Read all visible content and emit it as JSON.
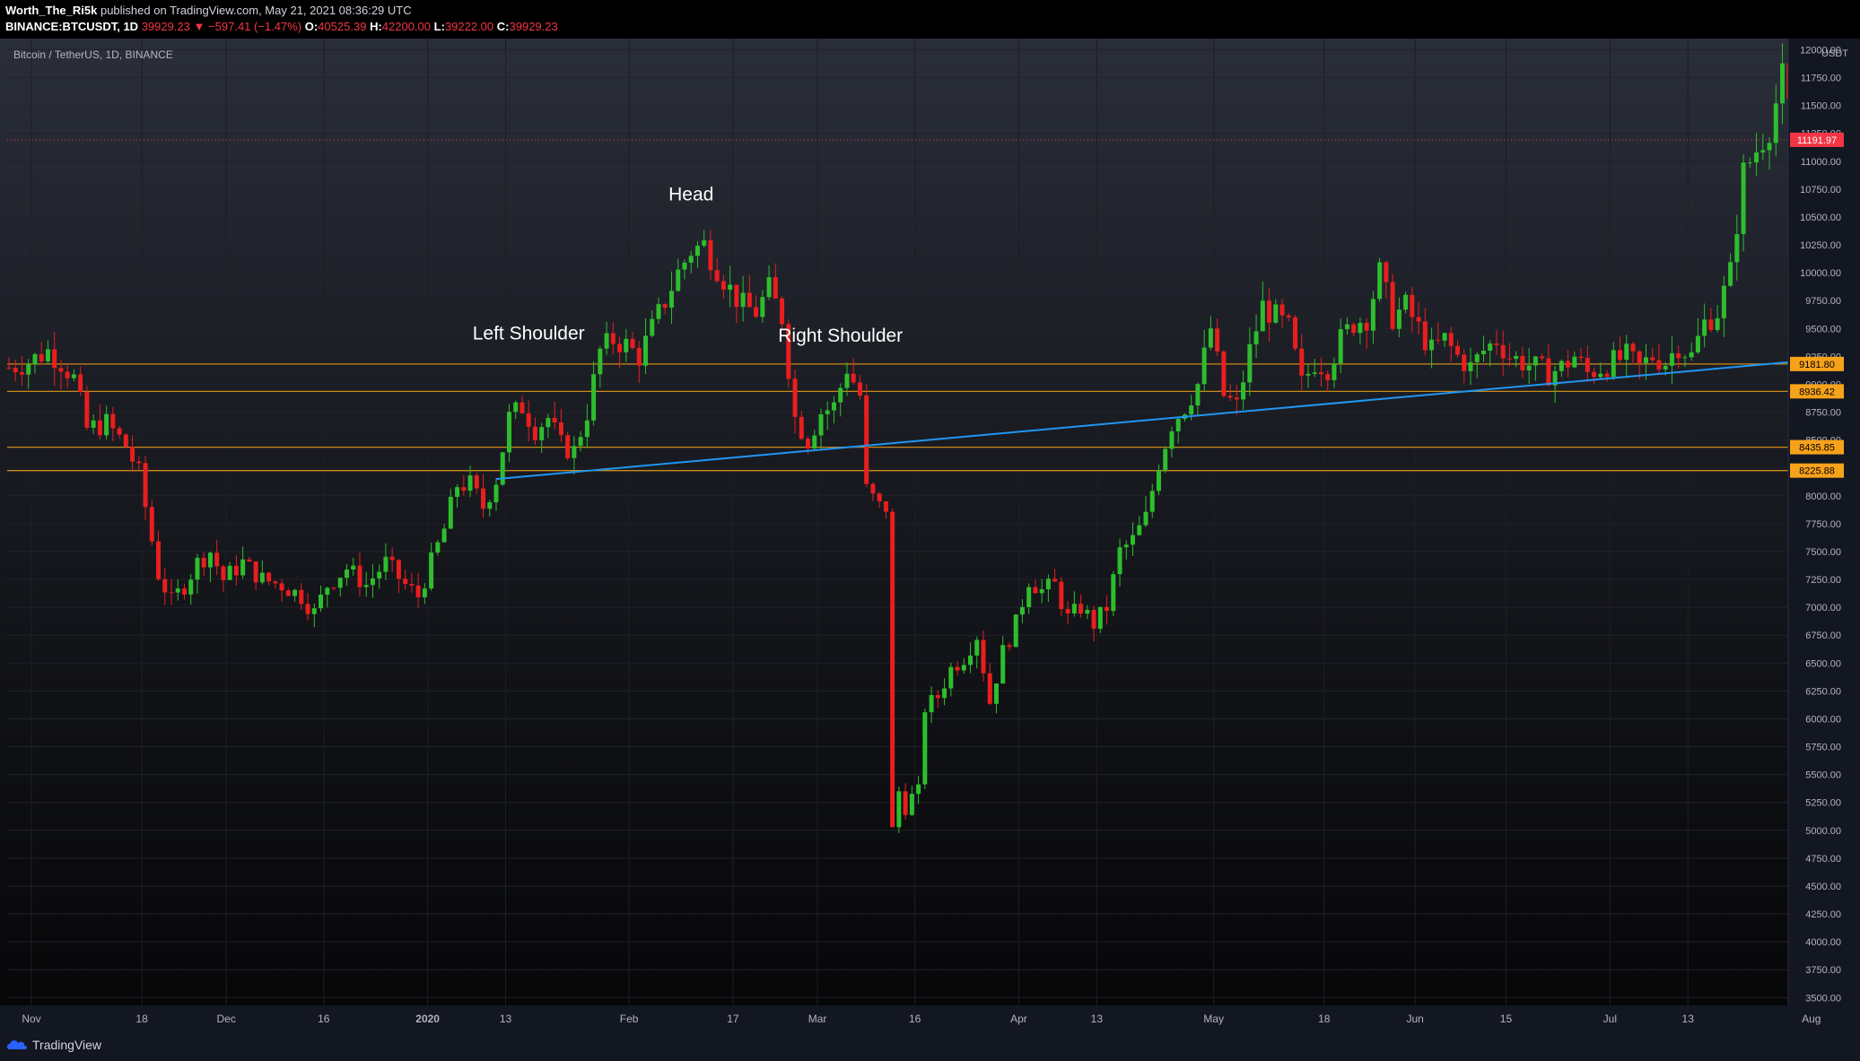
{
  "header": {
    "author": "Worth_The_Ri5k",
    "published_text": "published on TradingView.com, May 21, 2021 08:36:29 UTC",
    "symbol": "BINANCE:BTCUSDT, 1D",
    "last": "39929.23",
    "change": "−597.41 (−1.47%)",
    "open_label": "O:",
    "open": "40525.39",
    "high_label": "H:",
    "high": "42200.00",
    "low_label": "L:",
    "low": "39222.00",
    "close_label": "C:",
    "close": "39929.23"
  },
  "chart_title": "Bitcoin / TetherUS, 1D, BINANCE",
  "footer": {
    "brand": "TradingView"
  },
  "colors": {
    "up": "#26a69a",
    "up_body": "#2ebd2e",
    "down": "#e91e1e",
    "hline": "#c98a1a",
    "trendline": "#2196f3",
    "price_tag": "#f23645",
    "level_tag": "#f7a21b"
  },
  "chart_data": {
    "type": "candlestick",
    "title": "Bitcoin / TetherUS, 1D, BINANCE",
    "y_unit": "USDT",
    "ylim": [
      3400,
      12200
    ],
    "y_ticks": [
      3500,
      3750,
      4000,
      4250,
      4500,
      4750,
      5000,
      5250,
      5500,
      5750,
      6000,
      6250,
      6500,
      6750,
      7000,
      7250,
      7500,
      7750,
      8000,
      8250,
      8500,
      8750,
      9000,
      9250,
      9500,
      9750,
      10000,
      10250,
      10500,
      10750,
      11000,
      11250,
      11500,
      11750,
      12000
    ],
    "x_start_date": "2019-11-01",
    "x_ticks": [
      {
        "label": "Nov",
        "day": 0
      },
      {
        "label": "18",
        "day": 17
      },
      {
        "label": "Dec",
        "day": 30
      },
      {
        "label": "16",
        "day": 45
      },
      {
        "label": "2020",
        "day": 61
      },
      {
        "label": "13",
        "day": 73
      },
      {
        "label": "Feb",
        "day": 92
      },
      {
        "label": "17",
        "day": 108
      },
      {
        "label": "Mar",
        "day": 121
      },
      {
        "label": "16",
        "day": 136
      },
      {
        "label": "Apr",
        "day": 152
      },
      {
        "label": "13",
        "day": 164
      },
      {
        "label": "May",
        "day": 182
      },
      {
        "label": "18",
        "day": 199
      },
      {
        "label": "Jun",
        "day": 213
      },
      {
        "label": "15",
        "day": 227
      },
      {
        "label": "Jul",
        "day": 243
      },
      {
        "label": "13",
        "day": 255
      },
      {
        "label": "Aug",
        "day": 274
      }
    ],
    "horizontal_levels": [
      9181.8,
      8936.42,
      8435.85,
      8225.88
    ],
    "trendline": {
      "from": {
        "day": 75,
        "price": 8150
      },
      "to": {
        "day": 280,
        "price": 9230
      }
    },
    "current_price": "11191.97",
    "current_price_value": 11191.97,
    "annotations": [
      {
        "text": "Left Shoulder",
        "day": 80,
        "price": 9400
      },
      {
        "text": "Head",
        "day": 105,
        "price": 10650
      },
      {
        "text": "Right Shoulder",
        "day": 128,
        "price": 9380
      }
    ],
    "close_anchors": [
      [
        0,
        9150
      ],
      [
        3,
        9200
      ],
      [
        6,
        9300
      ],
      [
        8,
        9200
      ],
      [
        10,
        9050
      ],
      [
        12,
        8600
      ],
      [
        15,
        8650
      ],
      [
        18,
        8450
      ],
      [
        20,
        8200
      ],
      [
        23,
        7300
      ],
      [
        25,
        7050
      ],
      [
        27,
        7200
      ],
      [
        29,
        7400
      ],
      [
        31,
        7500
      ],
      [
        33,
        7250
      ],
      [
        36,
        7400
      ],
      [
        39,
        7250
      ],
      [
        42,
        7200
      ],
      [
        45,
        7100
      ],
      [
        47,
        6950
      ],
      [
        49,
        7200
      ],
      [
        52,
        7350
      ],
      [
        55,
        7200
      ],
      [
        58,
        7400
      ],
      [
        61,
        7200
      ],
      [
        63,
        7100
      ],
      [
        65,
        7400
      ],
      [
        67,
        7700
      ],
      [
        69,
        8100
      ],
      [
        71,
        8100
      ],
      [
        73,
        7900
      ],
      [
        75,
        8150
      ],
      [
        77,
        8700
      ],
      [
        79,
        8800
      ],
      [
        81,
        8600
      ],
      [
        83,
        8700
      ],
      [
        85,
        8450
      ],
      [
        87,
        8400
      ],
      [
        89,
        8750
      ],
      [
        91,
        9300
      ],
      [
        93,
        9400
      ],
      [
        95,
        9350
      ],
      [
        97,
        9250
      ],
      [
        99,
        9500
      ],
      [
        101,
        9750
      ],
      [
        103,
        10000
      ],
      [
        105,
        10200
      ],
      [
        107,
        10250
      ],
      [
        109,
        10050
      ],
      [
        111,
        9850
      ],
      [
        113,
        9700
      ],
      [
        115,
        9650
      ],
      [
        117,
        9850
      ],
      [
        119,
        9600
      ],
      [
        121,
        8700
      ],
      [
        123,
        8500
      ],
      [
        125,
        8750
      ],
      [
        127,
        8800
      ],
      [
        129,
        9150
      ],
      [
        131,
        8900
      ],
      [
        132,
        8050
      ],
      [
        134,
        7900
      ],
      [
        135,
        7900
      ],
      [
        136,
        5000
      ],
      [
        137,
        5350
      ],
      [
        138,
        5200
      ],
      [
        139,
        5300
      ],
      [
        140,
        5350
      ],
      [
        141,
        6100
      ],
      [
        143,
        6200
      ],
      [
        145,
        6450
      ],
      [
        147,
        6550
      ],
      [
        149,
        6750
      ],
      [
        151,
        6150
      ],
      [
        153,
        6600
      ],
      [
        155,
        6850
      ],
      [
        157,
        7250
      ],
      [
        159,
        7150
      ],
      [
        161,
        7200
      ],
      [
        163,
        6900
      ],
      [
        165,
        7000
      ],
      [
        167,
        6850
      ],
      [
        169,
        7000
      ],
      [
        171,
        7500
      ],
      [
        173,
        7600
      ],
      [
        175,
        7800
      ],
      [
        177,
        8300
      ],
      [
        179,
        8650
      ],
      [
        181,
        8800
      ],
      [
        183,
        9000
      ],
      [
        185,
        9500
      ],
      [
        187,
        8900
      ],
      [
        189,
        8800
      ],
      [
        191,
        9300
      ],
      [
        193,
        9700
      ],
      [
        195,
        9600
      ],
      [
        197,
        9500
      ],
      [
        199,
        9000
      ],
      [
        201,
        9200
      ],
      [
        203,
        9150
      ],
      [
        205,
        9400
      ],
      [
        207,
        9550
      ],
      [
        209,
        9600
      ],
      [
        211,
        10000
      ],
      [
        213,
        9600
      ],
      [
        215,
        9700
      ],
      [
        217,
        9500
      ],
      [
        219,
        9300
      ],
      [
        221,
        9400
      ],
      [
        223,
        9250
      ],
      [
        225,
        9150
      ],
      [
        227,
        9300
      ],
      [
        229,
        9400
      ],
      [
        231,
        9250
      ],
      [
        233,
        9200
      ],
      [
        235,
        9150
      ],
      [
        237,
        9100
      ],
      [
        239,
        9150
      ],
      [
        241,
        9250
      ],
      [
        243,
        9100
      ],
      [
        245,
        9150
      ],
      [
        247,
        9200
      ],
      [
        249,
        9250
      ],
      [
        251,
        9150
      ],
      [
        253,
        9250
      ],
      [
        255,
        9200
      ],
      [
        257,
        9350
      ],
      [
        259,
        9250
      ],
      [
        261,
        9550
      ],
      [
        263,
        9650
      ],
      [
        265,
        10000
      ],
      [
        267,
        10900
      ],
      [
        269,
        11100
      ],
      [
        271,
        11300
      ],
      [
        273,
        11750
      ],
      [
        275,
        11200
      ],
      [
        277,
        11150
      ],
      [
        279,
        11192
      ]
    ]
  }
}
